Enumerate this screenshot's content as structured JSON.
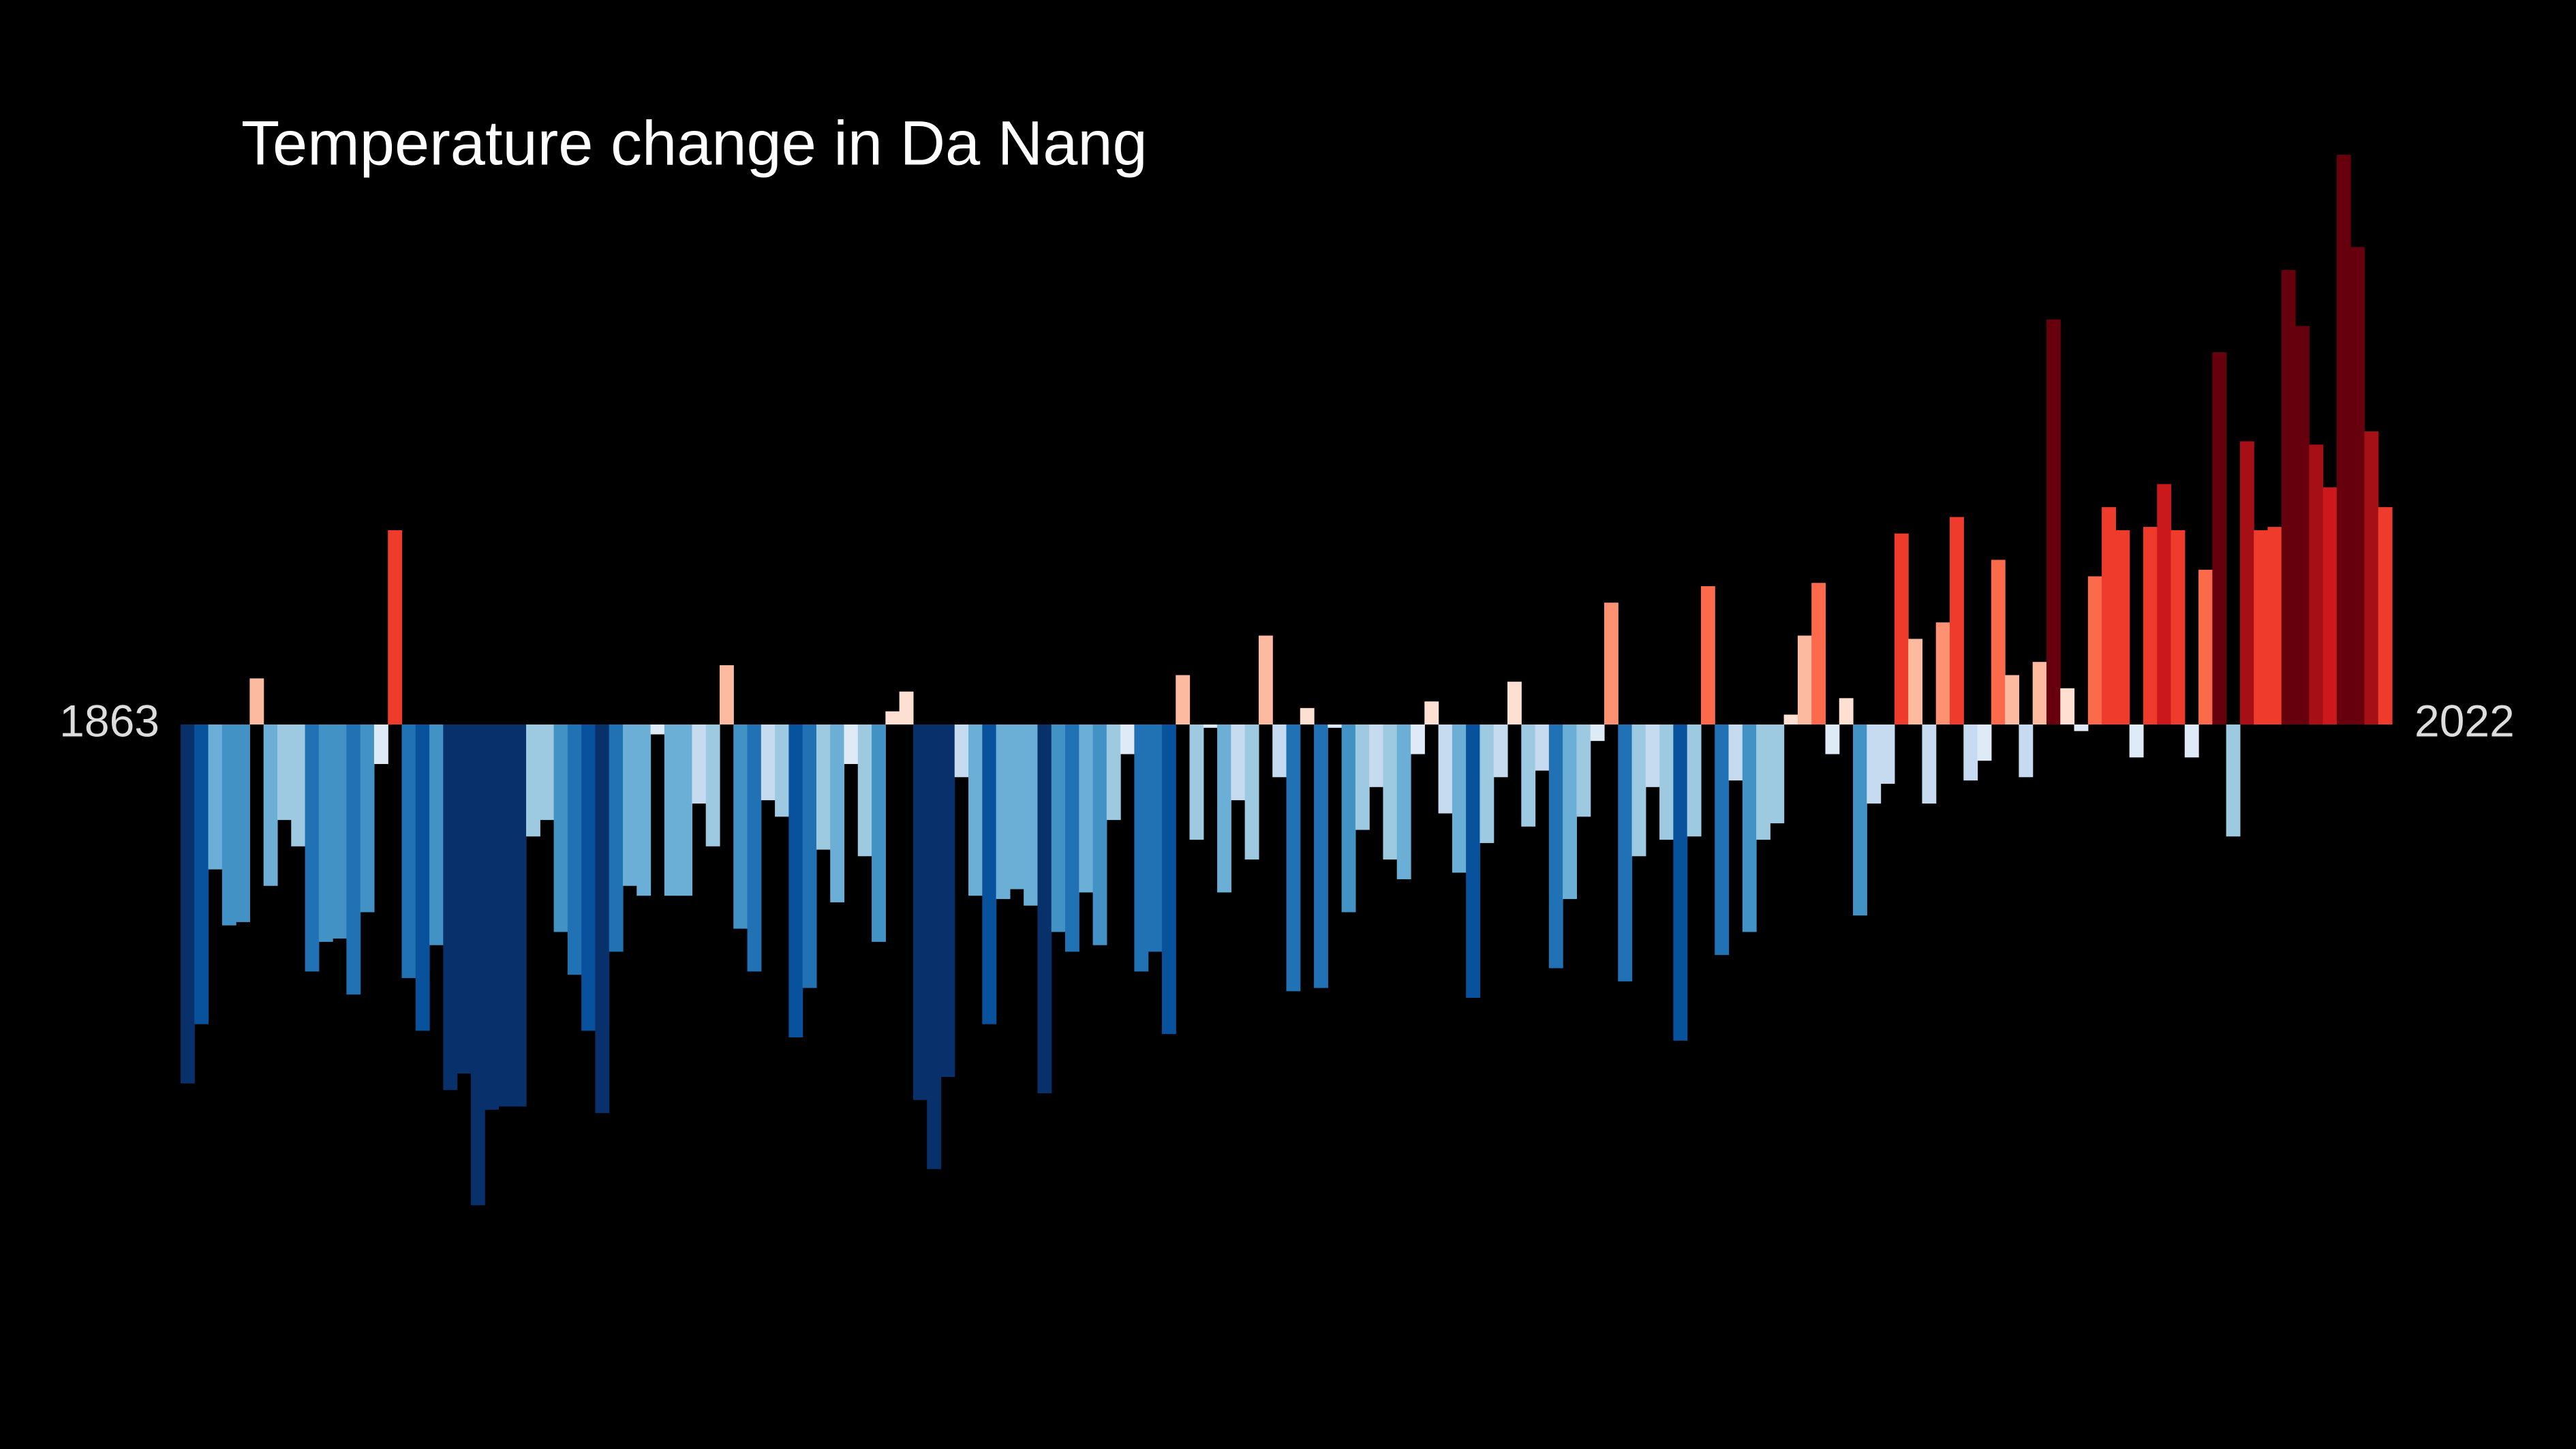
{
  "chart_data": {
    "type": "bar",
    "title": "Temperature change in Da Nang",
    "categories": [
      "1863",
      null,
      null,
      null,
      null,
      null,
      null,
      null,
      null,
      null,
      null,
      null,
      null,
      null,
      null,
      null,
      null,
      null,
      null,
      null,
      null,
      null,
      null,
      null,
      null,
      null,
      null,
      null,
      null,
      null,
      null,
      null,
      null,
      null,
      null,
      null,
      null,
      null,
      null,
      null,
      null,
      null,
      null,
      null,
      null,
      null,
      null,
      null,
      null,
      null,
      null,
      null,
      null,
      null,
      null,
      null,
      null,
      null,
      null,
      null,
      null,
      null,
      null,
      null,
      null,
      null,
      null,
      null,
      null,
      null,
      null,
      null,
      null,
      null,
      null,
      null,
      null,
      null,
      null,
      null,
      null,
      null,
      null,
      null,
      null,
      null,
      null,
      null,
      null,
      null,
      null,
      null,
      null,
      null,
      null,
      null,
      null,
      null,
      null,
      null,
      null,
      null,
      null,
      null,
      null,
      null,
      null,
      null,
      null,
      null,
      null,
      null,
      null,
      null,
      null,
      null,
      null,
      null,
      null,
      null,
      null,
      null,
      null,
      null,
      null,
      null,
      null,
      null,
      null,
      null,
      null,
      null,
      null,
      null,
      null,
      null,
      null,
      null,
      null,
      null,
      null,
      null,
      null,
      null,
      null,
      null,
      null,
      null,
      null,
      null,
      null,
      null,
      null,
      null,
      null,
      null,
      null,
      null,
      null,
      "2022"
    ],
    "values": [
      -1.09,
      -0.91,
      -0.44,
      -0.61,
      -0.6,
      0.14,
      -0.49,
      -0.29,
      -0.37,
      -0.75,
      -0.66,
      -0.65,
      -0.82,
      -0.57,
      -0.12,
      0.59,
      -0.77,
      -0.93,
      -0.67,
      -1.11,
      -1.06,
      -1.46,
      -1.17,
      -1.16,
      -1.16,
      -0.34,
      -0.29,
      -0.63,
      -0.76,
      -0.93,
      -1.18,
      -0.69,
      -0.49,
      -0.52,
      -0.03,
      -0.52,
      -0.52,
      -0.24,
      -0.37,
      0.18,
      -0.62,
      -0.75,
      -0.23,
      -0.28,
      -0.95,
      -0.8,
      -0.38,
      -0.54,
      -0.12,
      -0.4,
      -0.66,
      0.04,
      0.1,
      -1.14,
      -1.35,
      -1.07,
      -0.16,
      -0.52,
      -0.91,
      -0.53,
      -0.5,
      -0.55,
      -1.12,
      -0.63,
      -0.69,
      -0.51,
      -0.67,
      -0.29,
      -0.09,
      -0.75,
      -0.69,
      -0.94,
      0.15,
      -0.35,
      -0.01,
      -0.51,
      -0.23,
      -0.41,
      0.27,
      -0.16,
      -0.81,
      0.05,
      -0.8,
      -0.01,
      -0.57,
      -0.32,
      -0.19,
      -0.41,
      -0.47,
      -0.09,
      0.07,
      -0.27,
      -0.45,
      -0.83,
      -0.36,
      -0.16,
      0.13,
      -0.31,
      -0.14,
      -0.74,
      -0.53,
      -0.28,
      -0.05,
      0.37,
      -0.78,
      -0.4,
      -0.19,
      -0.35,
      -0.96,
      -0.34,
      0.42,
      -0.7,
      -0.17,
      -0.63,
      -0.35,
      -0.3,
      0.03,
      0.27,
      0.43,
      -0.09,
      0.08,
      -0.58,
      -0.24,
      -0.18,
      0.58,
      0.26,
      -0.24,
      0.31,
      0.63,
      -0.17,
      -0.11,
      0.5,
      0.15,
      -0.16,
      0.19,
      1.23,
      0.11,
      -0.02,
      0.45,
      0.66,
      0.59,
      -0.1,
      0.6,
      0.73,
      0.59,
      -0.1,
      0.47,
      1.13,
      -0.34,
      0.86,
      0.59,
      0.6,
      1.38,
      1.21,
      0.85,
      0.72,
      1.73,
      1.45,
      0.89,
      0.66
    ],
    "ylim": [
      -2.2,
      2.2
    ],
    "colors": [
      "#08306b",
      "#08519c",
      "#2171b5",
      "#4292c6",
      "#6baed6",
      "#9ecae1",
      "#c6dbef",
      "#deebf7",
      "#fee0d2",
      "#fcbba1",
      "#fc9272",
      "#fb6a4a",
      "#ef3b2c",
      "#cb181d",
      "#a50f15",
      "#67000d"
    ],
    "clim": [
      -1.1,
      1.1
    ]
  }
}
